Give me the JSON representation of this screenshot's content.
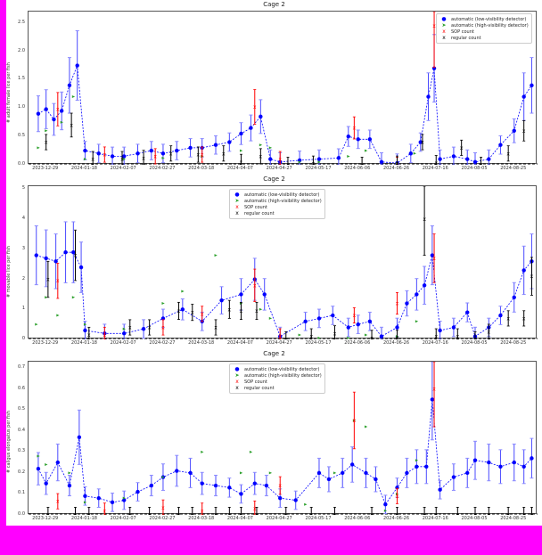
{
  "figure": {
    "background_outer": "#ff00ff",
    "background_inner": "#ffffff"
  },
  "legend": {
    "entries": [
      {
        "label": "automatic (low-visibility detector)",
        "marker": "●",
        "color": "#0000ff"
      },
      {
        "label": "automatic (high-visibility detector)",
        "marker": "➤",
        "color": "#2ca02c"
      },
      {
        "label": "SOP count",
        "marker": "x",
        "color": "#ff0000"
      },
      {
        "label": "regular count",
        "marker": "x",
        "color": "#000000"
      }
    ]
  },
  "chart_data": [
    {
      "type": "scatter",
      "title": "Cage 2",
      "xlabel": "",
      "ylabel": "# adult female lice per fish",
      "ylim": [
        0,
        2.7
      ],
      "yticks": [
        "0.0",
        "0.5",
        "1.0",
        "1.5",
        "2.0",
        "2.5"
      ],
      "xticks": [
        "2023-12-29",
        "2024-01-18",
        "2024-02-07",
        "2024-02-27",
        "2024-03-18",
        "2024-04-07",
        "2024-04-27",
        "2024-05-17",
        "2024-06-06",
        "2024-06-26",
        "2024-07-16",
        "2024-08-05",
        "2024-08-25"
      ],
      "legend_position": "upper right",
      "grid": false,
      "series": [
        {
          "name": "automatic (low-visibility detector)",
          "x": [
            "2023-12-25",
            "2023-12-29",
            "2024-01-02",
            "2024-01-06",
            "2024-01-10",
            "2024-01-14",
            "2024-01-18",
            "2024-01-25",
            "2024-02-01",
            "2024-02-07",
            "2024-02-14",
            "2024-02-21",
            "2024-02-27",
            "2024-03-05",
            "2024-03-12",
            "2024-03-18",
            "2024-03-25",
            "2024-04-01",
            "2024-04-07",
            "2024-04-12",
            "2024-04-17",
            "2024-04-22",
            "2024-04-27",
            "2024-05-07",
            "2024-05-17",
            "2024-05-27",
            "2024-06-01",
            "2024-06-06",
            "2024-06-12",
            "2024-06-18",
            "2024-06-26",
            "2024-07-03",
            "2024-07-08",
            "2024-07-12",
            "2024-07-15",
            "2024-07-18",
            "2024-07-25",
            "2024-08-01",
            "2024-08-05",
            "2024-08-12",
            "2024-08-18",
            "2024-08-25",
            "2024-08-30",
            "2024-09-03"
          ],
          "values": [
            0.9,
            0.98,
            0.8,
            0.95,
            1.4,
            1.75,
            0.25,
            0.2,
            0.15,
            0.15,
            0.2,
            0.25,
            0.2,
            0.25,
            0.3,
            0.3,
            0.35,
            0.4,
            0.55,
            0.65,
            0.85,
            0.1,
            0.05,
            0.08,
            0.1,
            0.12,
            0.5,
            0.45,
            0.45,
            0.05,
            0.03,
            0.2,
            0.4,
            1.2,
            1.7,
            0.1,
            0.15,
            0.1,
            0.05,
            0.1,
            0.35,
            0.6,
            1.2,
            1.4
          ]
        },
        {
          "name": "automatic (high-visibility detector)",
          "x": [
            "2023-12-25",
            "2023-12-29",
            "2024-01-06",
            "2024-01-12",
            "2024-01-18",
            "2024-02-07",
            "2024-02-27",
            "2024-03-18",
            "2024-04-07",
            "2024-04-17",
            "2024-04-22",
            "2024-05-07",
            "2024-05-17",
            "2024-06-01",
            "2024-06-10",
            "2024-06-26",
            "2024-07-05"
          ],
          "values": [
            0.3,
            0.6,
            0.75,
            1.2,
            0.1,
            0.1,
            0.12,
            0.15,
            0.25,
            0.35,
            0.3,
            0.05,
            0.05,
            0.15,
            0.25,
            0.02,
            0.2
          ]
        },
        {
          "name": "SOP count",
          "x": [
            "2024-01-04",
            "2024-01-28",
            "2024-02-23",
            "2024-03-18",
            "2024-04-14",
            "2024-04-27",
            "2024-06-04",
            "2024-06-26",
            "2024-07-15"
          ],
          "values": [
            0.98,
            0.18,
            0.15,
            0.18,
            1.02,
            0.1,
            0.65,
            0.0,
            2.45
          ]
        },
        {
          "name": "regular count",
          "x": [
            "2023-12-29",
            "2024-01-11",
            "2024-01-22",
            "2024-02-06",
            "2024-02-17",
            "2024-03-02",
            "2024-03-16",
            "2024-03-29",
            "2024-04-07",
            "2024-04-17",
            "2024-05-01",
            "2024-05-14",
            "2024-06-08",
            "2024-06-26",
            "2024-07-09",
            "2024-07-16",
            "2024-07-29",
            "2024-08-08",
            "2024-08-22",
            "2024-08-30"
          ],
          "values": [
            0.4,
            0.7,
            0.1,
            0.1,
            0.12,
            0.2,
            0.18,
            0.2,
            0.05,
            0.15,
            0.0,
            0.02,
            0.0,
            0.02,
            0.4,
            0.03,
            0.3,
            0.0,
            0.2,
            0.6
          ]
        }
      ]
    },
    {
      "type": "scatter",
      "title": "Cage 2",
      "xlabel": "",
      "ylabel": "# movable lice per fish",
      "ylim": [
        0,
        5.1
      ],
      "yticks": [
        "0",
        "1",
        "2",
        "3",
        "4",
        "5"
      ],
      "xticks": [
        "2023-12-29",
        "2024-01-18",
        "2024-02-07",
        "2024-02-27",
        "2024-03-18",
        "2024-04-07",
        "2024-04-27",
        "2024-05-17",
        "2024-06-06",
        "2024-06-26",
        "2024-07-16",
        "2024-08-05",
        "2024-08-25"
      ],
      "legend_position": "upper center",
      "grid": false,
      "series": [
        {
          "name": "automatic (low-visibility detector)",
          "x": [
            "2023-12-24",
            "2023-12-29",
            "2024-01-03",
            "2024-01-08",
            "2024-01-12",
            "2024-01-16",
            "2024-01-18",
            "2024-01-28",
            "2024-02-07",
            "2024-02-17",
            "2024-02-27",
            "2024-03-08",
            "2024-03-18",
            "2024-03-28",
            "2024-04-07",
            "2024-04-14",
            "2024-04-19",
            "2024-04-27",
            "2024-05-10",
            "2024-05-17",
            "2024-05-24",
            "2024-06-01",
            "2024-06-06",
            "2024-06-12",
            "2024-06-18",
            "2024-06-26",
            "2024-07-01",
            "2024-07-06",
            "2024-07-10",
            "2024-07-14",
            "2024-07-18",
            "2024-07-25",
            "2024-08-01",
            "2024-08-05",
            "2024-08-12",
            "2024-08-18",
            "2024-08-25",
            "2024-08-30",
            "2024-09-03"
          ],
          "values": [
            2.8,
            2.7,
            2.6,
            2.9,
            2.9,
            2.4,
            0.3,
            0.2,
            0.2,
            0.35,
            0.7,
            1.0,
            0.6,
            1.3,
            1.5,
            2.0,
            1.5,
            0.1,
            0.6,
            0.7,
            0.8,
            0.4,
            0.5,
            0.6,
            0.1,
            0.4,
            1.2,
            1.5,
            1.8,
            2.8,
            0.3,
            0.4,
            0.9,
            0.1,
            0.4,
            0.8,
            1.4,
            2.3,
            2.6
          ]
        },
        {
          "name": "automatic (high-visibility detector)",
          "x": [
            "2023-12-24",
            "2023-12-29",
            "2024-01-04",
            "2024-01-12",
            "2024-01-18",
            "2024-02-07",
            "2024-02-27",
            "2024-03-08",
            "2024-03-25",
            "2024-04-07",
            "2024-04-17",
            "2024-04-22",
            "2024-05-07",
            "2024-05-17",
            "2024-06-01",
            "2024-06-10",
            "2024-06-26",
            "2024-07-06"
          ],
          "values": [
            0.5,
            1.4,
            0.8,
            1.4,
            0.5,
            0.35,
            1.2,
            1.6,
            2.8,
            1.2,
            1.0,
            0.7,
            0.15,
            0.05,
            0.05,
            0.15,
            0.1,
            0.6
          ]
        },
        {
          "name": "SOP count",
          "x": [
            "2024-01-04",
            "2024-01-28",
            "2024-02-27",
            "2024-03-18",
            "2024-04-14",
            "2024-04-27",
            "2024-06-04",
            "2024-06-26",
            "2024-07-15"
          ],
          "values": [
            1.95,
            0.15,
            0.4,
            0.85,
            1.8,
            0.1,
            0.8,
            1.2,
            2.7
          ]
        },
        {
          "name": "regular count",
          "x": [
            "2023-12-30",
            "2024-01-13",
            "2024-01-20",
            "2024-02-10",
            "2024-02-20",
            "2024-03-06",
            "2024-03-13",
            "2024-03-25",
            "2024-04-01",
            "2024-04-07",
            "2024-04-15",
            "2024-04-30",
            "2024-05-13",
            "2024-05-25",
            "2024-06-13",
            "2024-06-26",
            "2024-07-10",
            "2024-07-16",
            "2024-07-27",
            "2024-08-05",
            "2024-08-12",
            "2024-08-22",
            "2024-08-30",
            "2024-09-03"
          ],
          "values": [
            2.0,
            2.8,
            0.15,
            0.4,
            0.4,
            0.95,
            0.9,
            0.4,
            1.0,
            0.95,
            0.95,
            0.0,
            0.1,
            0.2,
            0.05,
            0.05,
            4.0,
            0.1,
            0.1,
            0.0,
            0.25,
            0.7,
            0.7,
            2.1
          ]
        }
      ]
    },
    {
      "type": "scatter",
      "title": "Cage 2",
      "xlabel": "",
      "ylabel": "# caligus elongatus per fish",
      "ylim": [
        0,
        0.73
      ],
      "yticks": [
        "0.0",
        "0.1",
        "0.2",
        "0.3",
        "0.4",
        "0.5",
        "0.6",
        "0.7"
      ],
      "xticks": [
        "2023-12-29",
        "2024-01-18",
        "2024-02-07",
        "2024-02-27",
        "2024-03-18",
        "2024-04-07",
        "2024-04-27",
        "2024-05-17",
        "2024-06-06",
        "2024-06-26",
        "2024-07-16",
        "2024-08-05",
        "2024-08-25"
      ],
      "legend_position": "upper center",
      "grid": false,
      "series": [
        {
          "name": "automatic (low-visibility detector)",
          "x": [
            "2023-12-25",
            "2023-12-29",
            "2024-01-04",
            "2024-01-10",
            "2024-01-15",
            "2024-01-18",
            "2024-01-25",
            "2024-02-01",
            "2024-02-07",
            "2024-02-14",
            "2024-02-21",
            "2024-02-27",
            "2024-03-05",
            "2024-03-12",
            "2024-03-18",
            "2024-03-25",
            "2024-04-01",
            "2024-04-07",
            "2024-04-14",
            "2024-04-20",
            "2024-04-27",
            "2024-05-05",
            "2024-05-17",
            "2024-05-22",
            "2024-05-29",
            "2024-06-03",
            "2024-06-10",
            "2024-06-15",
            "2024-06-20",
            "2024-06-26",
            "2024-07-01",
            "2024-07-06",
            "2024-07-11",
            "2024-07-14",
            "2024-07-18",
            "2024-07-25",
            "2024-08-01",
            "2024-08-05",
            "2024-08-12",
            "2024-08-18",
            "2024-08-25",
            "2024-08-30",
            "2024-09-03"
          ],
          "values": [
            0.22,
            0.15,
            0.25,
            0.14,
            0.37,
            0.09,
            0.08,
            0.06,
            0.07,
            0.11,
            0.14,
            0.18,
            0.21,
            0.2,
            0.15,
            0.14,
            0.13,
            0.1,
            0.15,
            0.14,
            0.08,
            0.07,
            0.2,
            0.17,
            0.2,
            0.24,
            0.2,
            0.17,
            0.05,
            0.13,
            0.2,
            0.23,
            0.23,
            0.55,
            0.12,
            0.18,
            0.2,
            0.26,
            0.25,
            0.23,
            0.25,
            0.23,
            0.27
          ]
        },
        {
          "name": "automatic (high-visibility detector)",
          "x": [
            "2023-12-25",
            "2023-12-29",
            "2024-01-10",
            "2024-01-18",
            "2024-02-07",
            "2024-02-27",
            "2024-03-18",
            "2024-04-07",
            "2024-04-12",
            "2024-04-22",
            "2024-05-10",
            "2024-05-25",
            "2024-06-04",
            "2024-06-10",
            "2024-06-20",
            "2024-06-26",
            "2024-07-06"
          ],
          "values": [
            0.28,
            0.24,
            0.2,
            0.06,
            0.08,
            0.18,
            0.3,
            0.2,
            0.3,
            0.2,
            0.05,
            0.2,
            0.45,
            0.42,
            0.02,
            0.1,
            0.26
          ]
        },
        {
          "name": "SOP count",
          "x": [
            "2024-01-04",
            "2024-01-28",
            "2024-02-27",
            "2024-03-18",
            "2024-04-14",
            "2024-04-27",
            "2024-06-04",
            "2024-06-26",
            "2024-07-15"
          ],
          "values": [
            0.065,
            0.02,
            0.035,
            0.02,
            0.03,
            0.14,
            0.45,
            0.09,
            0.6
          ]
        },
        {
          "name": "regular count",
          "x": [
            "2023-12-30",
            "2024-01-13",
            "2024-01-20",
            "2024-02-10",
            "2024-02-20",
            "2024-03-06",
            "2024-03-13",
            "2024-03-25",
            "2024-04-01",
            "2024-04-07",
            "2024-04-15",
            "2024-04-30",
            "2024-05-13",
            "2024-05-25",
            "2024-06-13",
            "2024-06-26",
            "2024-07-10",
            "2024-07-16",
            "2024-07-27",
            "2024-08-05",
            "2024-08-12",
            "2024-08-22",
            "2024-08-30",
            "2024-09-03"
          ],
          "values": [
            0.0,
            0.0,
            0.0,
            0.0,
            0.0,
            0.0,
            0.0,
            0.0,
            0.0,
            0.0,
            0.0,
            0.0,
            0.0,
            0.0,
            0.0,
            0.0,
            0.0,
            0.0,
            0.0,
            0.0,
            0.0,
            0.0,
            0.0,
            0.0
          ]
        }
      ]
    }
  ]
}
